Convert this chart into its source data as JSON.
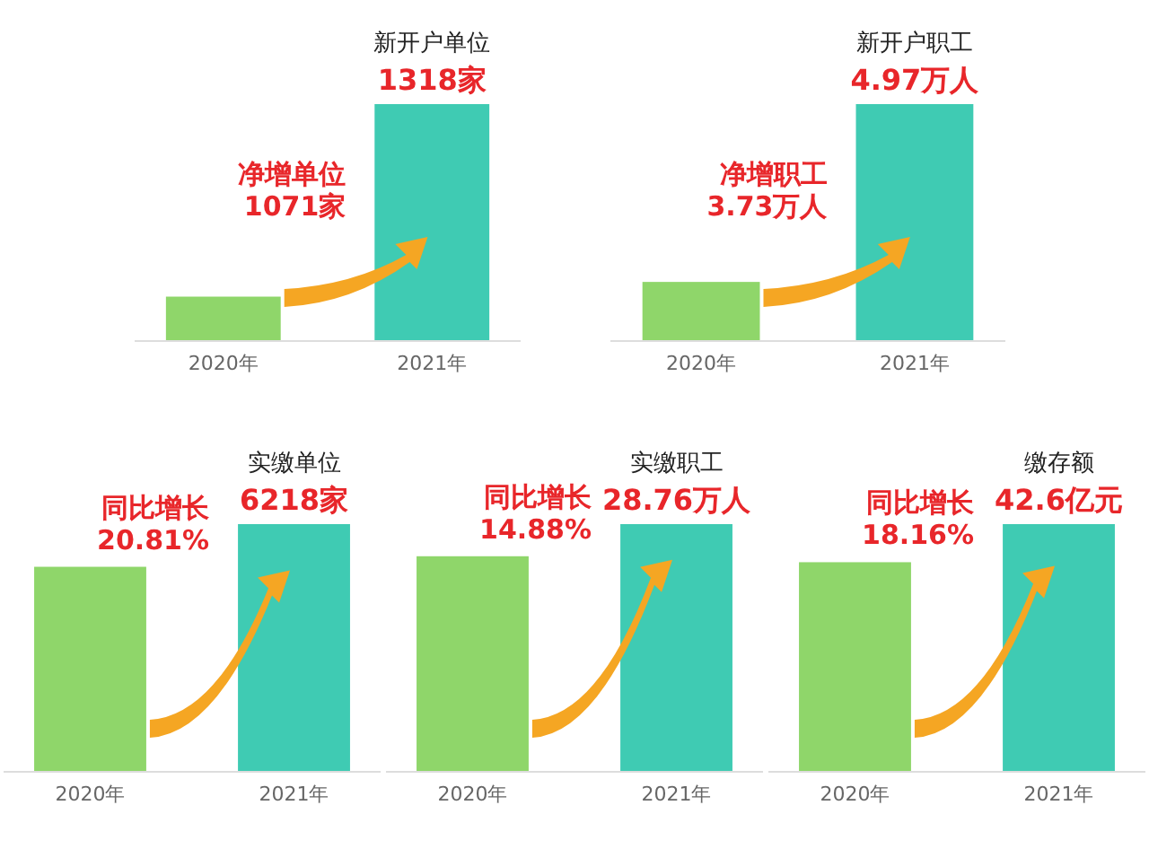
{
  "chart_data": [
    {
      "type": "bar",
      "title": "新开户单位",
      "categories": [
        "2020年",
        "2021年"
      ],
      "values": [
        247,
        1318
      ],
      "colors": [
        "#8fd66a",
        "#3fcbb3"
      ],
      "value_labels": [
        null,
        "1318家"
      ],
      "annotations": [
        "净增单位 1071家"
      ],
      "tick_labels": "x"
    },
    {
      "type": "bar",
      "title": "新开户职工",
      "categories": [
        "2020年",
        "2021年"
      ],
      "values": [
        1.24,
        4.97
      ],
      "colors": [
        "#8fd66a",
        "#3fcbb3"
      ],
      "value_labels": [
        null,
        "4.97万人"
      ],
      "annotations": [
        "净增职工 3.73万人"
      ],
      "tick_labels": "x"
    },
    {
      "type": "bar",
      "title": "实缴单位",
      "categories": [
        "2020年",
        "2021年"
      ],
      "values": [
        5147,
        6218
      ],
      "colors": [
        "#8fd66a",
        "#3fcbb3"
      ],
      "value_labels": [
        null,
        "6218家"
      ],
      "annotations": [
        "同比增长 20.81%"
      ],
      "tick_labels": "x"
    },
    {
      "type": "bar",
      "title": "实缴职工",
      "categories": [
        "2020年",
        "2021年"
      ],
      "values": [
        25.03,
        28.76
      ],
      "colors": [
        "#8fd66a",
        "#3fcbb3"
      ],
      "value_labels": [
        null,
        "28.76万人"
      ],
      "annotations": [
        "同比增长 14.88%"
      ],
      "tick_labels": "x"
    },
    {
      "type": "bar",
      "title": "缴存额",
      "categories": [
        "2020年",
        "2021年"
      ],
      "values": [
        36.05,
        42.6
      ],
      "colors": [
        "#8fd66a",
        "#3fcbb3"
      ],
      "value_labels": [
        null,
        "42.6亿元"
      ],
      "annotations": [
        "同比增长 18.16%"
      ],
      "tick_labels": "x"
    }
  ]
}
